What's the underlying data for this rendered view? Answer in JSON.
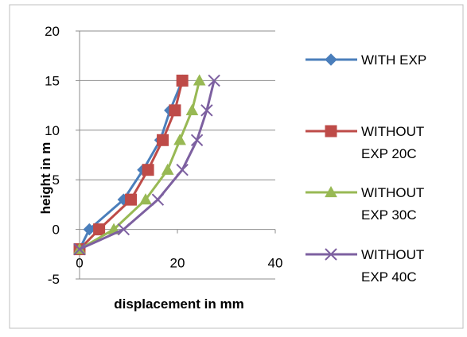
{
  "chart_data": {
    "type": "line",
    "title": "",
    "xlabel": "displacement in mm",
    "ylabel": "height in m",
    "xlim": [
      0,
      40
    ],
    "ylim": [
      -5,
      20
    ],
    "x_ticks": [
      "0",
      "20",
      "40"
    ],
    "y_ticks": [
      "-5",
      "0",
      "5",
      "10",
      "15",
      "20"
    ],
    "grid": "horizontal",
    "legend_position": "right",
    "series": [
      {
        "name": "WITH EXP",
        "color": "#4A7EBB",
        "marker": "diamond",
        "x": [
          0,
          2,
          9,
          13,
          16.5,
          18.5,
          21
        ],
        "y": [
          -2,
          0,
          3,
          6,
          9,
          12,
          15
        ]
      },
      {
        "name": "WITHOUT EXP 20C",
        "legend_lines": [
          "WITHOUT",
          "EXP 20C"
        ],
        "color": "#BE4B48",
        "marker": "square",
        "x": [
          0,
          4,
          10.5,
          14,
          17,
          19.5,
          21
        ],
        "y": [
          -2,
          0,
          3,
          6,
          9,
          12,
          15
        ]
      },
      {
        "name": "WITHOUT EXP 30C",
        "legend_lines": [
          "WITHOUT",
          "EXP 30C"
        ],
        "color": "#98B954",
        "marker": "triangle",
        "x": [
          0,
          7,
          13.5,
          18,
          20.5,
          23,
          24.5
        ],
        "y": [
          -2,
          0,
          3,
          6,
          9,
          12,
          15
        ]
      },
      {
        "name": "WITHOUT EXP 40C",
        "legend_lines": [
          "WITHOUT",
          "EXP 40C"
        ],
        "color": "#7D60A0",
        "marker": "x",
        "x": [
          0,
          9,
          16,
          21,
          24,
          26,
          27.5
        ],
        "y": [
          -2,
          0,
          3,
          6,
          9,
          12,
          15
        ]
      }
    ]
  }
}
